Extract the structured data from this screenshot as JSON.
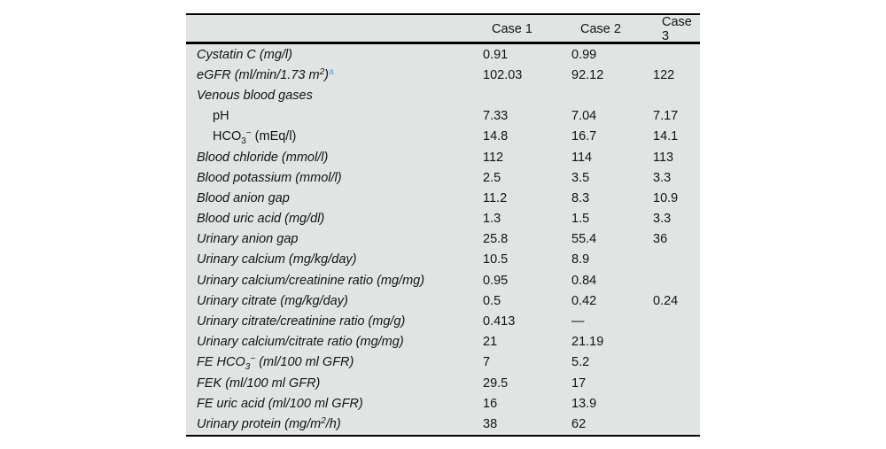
{
  "table": {
    "background_color": "#e0e4e3",
    "rule_color": "#000000",
    "text_color": "#141414",
    "accent_color": "#4aa4d8",
    "columns": [
      "",
      "Case 1",
      "Case 2",
      "Case 3"
    ],
    "rows": [
      {
        "italic": true,
        "indent": false,
        "label_parts": [
          {
            "text": "Cystatin C (mg/l)",
            "style": "normal"
          }
        ],
        "values": [
          "0.91",
          "0.99",
          ""
        ]
      },
      {
        "italic": true,
        "indent": false,
        "label_parts": [
          {
            "text": "eGFR (ml/min/1.73 m",
            "style": "normal"
          },
          {
            "text": "2",
            "style": "sup"
          },
          {
            "text": ")",
            "style": "normal"
          },
          {
            "text": "a",
            "style": "footnote"
          }
        ],
        "values": [
          "102.03",
          "92.12",
          "122"
        ]
      },
      {
        "italic": true,
        "indent": false,
        "label_parts": [
          {
            "text": "Venous blood gases",
            "style": "normal"
          }
        ],
        "values": [
          "",
          "",
          ""
        ]
      },
      {
        "italic": false,
        "indent": true,
        "label_parts": [
          {
            "text": "pH",
            "style": "normal"
          }
        ],
        "values": [
          "7.33",
          "7.04",
          "7.17"
        ]
      },
      {
        "italic": false,
        "indent": true,
        "label_parts": [
          {
            "text": "HCO",
            "style": "normal"
          },
          {
            "text": "3",
            "style": "sub"
          },
          {
            "text": "−",
            "style": "sup"
          },
          {
            "text": " (mEq/l)",
            "style": "normal"
          }
        ],
        "values": [
          "14.8",
          "16.7",
          "14.1"
        ]
      },
      {
        "italic": true,
        "indent": false,
        "label_parts": [
          {
            "text": "Blood chloride (mmol/l)",
            "style": "normal"
          }
        ],
        "values": [
          "112",
          "114",
          "113"
        ]
      },
      {
        "italic": true,
        "indent": false,
        "label_parts": [
          {
            "text": "Blood potassium (mmol/l)",
            "style": "normal"
          }
        ],
        "values": [
          "2.5",
          "3.5",
          "3.3"
        ]
      },
      {
        "italic": true,
        "indent": false,
        "label_parts": [
          {
            "text": "Blood anion gap",
            "style": "normal"
          }
        ],
        "values": [
          "11.2",
          "8.3",
          "10.9"
        ]
      },
      {
        "italic": true,
        "indent": false,
        "label_parts": [
          {
            "text": "Blood uric acid (mg/dl)",
            "style": "normal"
          }
        ],
        "values": [
          "1.3",
          "1.5",
          "3.3"
        ]
      },
      {
        "italic": true,
        "indent": false,
        "label_parts": [
          {
            "text": "Urinary anion gap",
            "style": "normal"
          }
        ],
        "values": [
          "25.8",
          "55.4",
          "36"
        ]
      },
      {
        "italic": true,
        "indent": false,
        "label_parts": [
          {
            "text": "Urinary calcium (mg/kg/day)",
            "style": "normal"
          }
        ],
        "values": [
          "10.5",
          "8.9",
          ""
        ]
      },
      {
        "italic": true,
        "indent": false,
        "label_parts": [
          {
            "text": "Urinary calcium/creatinine ratio (mg/mg)",
            "style": "normal"
          }
        ],
        "values": [
          "0.95",
          "0.84",
          ""
        ]
      },
      {
        "italic": true,
        "indent": false,
        "label_parts": [
          {
            "text": "Urinary citrate (mg/kg/day)",
            "style": "normal"
          }
        ],
        "values": [
          "0.5",
          "0.42",
          "0.24"
        ]
      },
      {
        "italic": true,
        "indent": false,
        "label_parts": [
          {
            "text": "Urinary citrate/creatinine ratio (mg/g)",
            "style": "normal"
          }
        ],
        "values": [
          "0.413",
          "—",
          ""
        ]
      },
      {
        "italic": true,
        "indent": false,
        "label_parts": [
          {
            "text": "Urinary calcium/citrate ratio (mg/mg)",
            "style": "normal"
          }
        ],
        "values": [
          "21",
          "21.19",
          ""
        ]
      },
      {
        "italic": true,
        "indent": false,
        "label_parts": [
          {
            "text": "FE HCO",
            "style": "normal"
          },
          {
            "text": "3",
            "style": "sub"
          },
          {
            "text": "−",
            "style": "sup"
          },
          {
            "text": " (ml/100 ml GFR)",
            "style": "normal"
          }
        ],
        "values": [
          "7",
          "5.2",
          ""
        ]
      },
      {
        "italic": true,
        "indent": false,
        "label_parts": [
          {
            "text": "FEK (ml/100 ml GFR)",
            "style": "normal"
          }
        ],
        "values": [
          "29.5",
          "17",
          ""
        ]
      },
      {
        "italic": true,
        "indent": false,
        "label_parts": [
          {
            "text": "FE uric acid (ml/100 ml GFR)",
            "style": "normal"
          }
        ],
        "values": [
          "16",
          "13.9",
          ""
        ]
      },
      {
        "italic": true,
        "indent": false,
        "label_parts": [
          {
            "text": "Urinary protein (mg/m",
            "style": "normal"
          },
          {
            "text": "2",
            "style": "sup"
          },
          {
            "text": "/h)",
            "style": "normal"
          }
        ],
        "values": [
          "38",
          "62",
          ""
        ]
      }
    ]
  }
}
